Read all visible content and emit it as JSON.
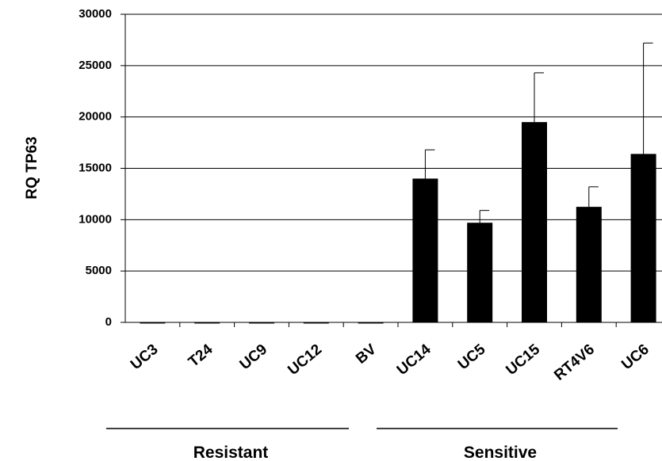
{
  "chart_data": {
    "type": "bar",
    "title": "",
    "xlabel": "",
    "ylabel": "RQ TP63",
    "ylim": [
      0,
      30000
    ],
    "yticks": [
      0,
      5000,
      10000,
      15000,
      20000,
      25000,
      30000
    ],
    "grid": true,
    "legend": "none",
    "bar_color": "#000000",
    "categories": [
      "UC3",
      "T24",
      "UC9",
      "UC12",
      "BV",
      "UC14",
      "UC5",
      "UC15",
      "RT4V6",
      "UC6"
    ],
    "series": [
      {
        "values": [
          5,
          5,
          5,
          5,
          5,
          14000,
          9700,
          19500,
          11250,
          16400
        ],
        "error": [
          0,
          0,
          0,
          0,
          0,
          2800,
          1200,
          4800,
          1950,
          10800
        ]
      }
    ],
    "groups": [
      {
        "label": "Resistant",
        "categories": [
          "UC3",
          "T24",
          "UC9",
          "UC12",
          "BV"
        ]
      },
      {
        "label": "Sensitive",
        "categories": [
          "UC14",
          "UC5",
          "UC15",
          "RT4V6",
          "UC6"
        ]
      }
    ]
  }
}
